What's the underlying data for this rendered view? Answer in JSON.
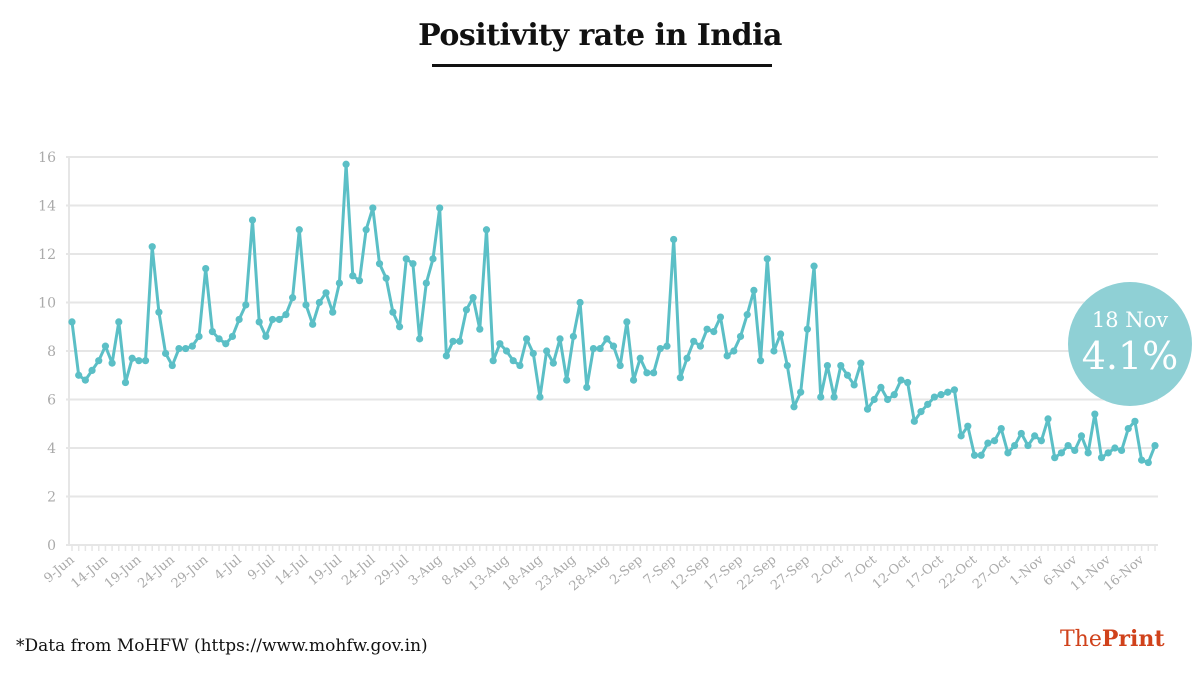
{
  "title": "Positivity rate in India",
  "source_note": "*Data from MoHFW (https://www.mohfw.gov.in)",
  "brand": {
    "part1": "The",
    "part2": "Print",
    "color": "#d0421b"
  },
  "callout": {
    "date": "18 Nov",
    "value": "4.1%",
    "color": "#8fd0d5"
  },
  "colors": {
    "line": "#5bbfc6",
    "grid": "#e6e6e6",
    "tick_text": "#aaaaaa"
  },
  "chart_data": {
    "type": "line",
    "title": "Positivity rate in India",
    "xlabel": "",
    "ylabel": "",
    "ylim": [
      0,
      16
    ],
    "yticks": [
      0,
      2,
      4,
      6,
      8,
      10,
      12,
      14,
      16
    ],
    "grid": true,
    "legend": "none",
    "start_date": "9-Jun",
    "end_date": "18-Nov",
    "xtick_labels": [
      "9-Jun",
      "14-Jun",
      "19-Jun",
      "24-Jun",
      "29-Jun",
      "4-Jul",
      "9-Jul",
      "14-Jul",
      "19-Jul",
      "24-Jul",
      "29-Jul",
      "3-Aug",
      "8-Aug",
      "13-Aug",
      "18-Aug",
      "23-Aug",
      "28-Aug",
      "2-Sep",
      "7-Sep",
      "12-Sep",
      "17-Sep",
      "22-Sep",
      "27-Sep",
      "2-Oct",
      "7-Oct",
      "12-Oct",
      "17-Oct",
      "22-Oct",
      "27-Oct",
      "1-Nov",
      "6-Nov",
      "11-Nov",
      "16-Nov"
    ],
    "xtick_every_n_days": 5,
    "series": [
      {
        "name": "Positivity rate (%)",
        "values": [
          9.2,
          7.0,
          6.8,
          7.2,
          7.6,
          8.2,
          7.5,
          9.2,
          6.7,
          7.7,
          7.6,
          7.6,
          12.3,
          9.6,
          7.9,
          7.4,
          8.1,
          8.1,
          8.2,
          8.6,
          11.4,
          8.8,
          8.5,
          8.3,
          8.6,
          9.3,
          9.9,
          13.4,
          9.2,
          8.6,
          9.3,
          9.3,
          9.5,
          10.2,
          13.0,
          9.9,
          9.1,
          10.0,
          10.4,
          9.6,
          10.8,
          15.7,
          11.1,
          10.9,
          13.0,
          13.9,
          11.6,
          11.0,
          9.6,
          9.0,
          11.8,
          11.6,
          8.5,
          10.8,
          11.8,
          13.9,
          7.8,
          8.4,
          8.4,
          9.7,
          10.2,
          8.9,
          13.0,
          7.6,
          8.3,
          8.0,
          7.6,
          7.4,
          8.5,
          7.9,
          6.1,
          8.0,
          7.5,
          8.5,
          6.8,
          8.6,
          10.0,
          6.5,
          8.1,
          8.1,
          8.5,
          8.2,
          7.4,
          9.2,
          6.8,
          7.7,
          7.1,
          7.1,
          8.1,
          8.2,
          12.6,
          6.9,
          7.7,
          8.4,
          8.2,
          8.9,
          8.8,
          9.4,
          7.8,
          8.0,
          8.6,
          9.5,
          10.5,
          7.6,
          11.8,
          8.0,
          8.7,
          7.4,
          5.7,
          6.3,
          8.9,
          11.5,
          6.1,
          7.4,
          6.1,
          7.4,
          7.0,
          6.6,
          7.5,
          5.6,
          6.0,
          6.5,
          6.0,
          6.2,
          6.8,
          6.7,
          5.1,
          5.5,
          5.8,
          6.1,
          6.2,
          6.3,
          6.4,
          4.5,
          4.9,
          3.7,
          3.7,
          4.2,
          4.3,
          4.8,
          3.8,
          4.1,
          4.6,
          4.1,
          4.5,
          4.3,
          5.2,
          3.6,
          3.8,
          4.1,
          3.9,
          4.5,
          3.8,
          5.4,
          3.6,
          3.8,
          4.0,
          3.9,
          4.8,
          5.1,
          3.5,
          3.4,
          4.1
        ]
      }
    ]
  }
}
